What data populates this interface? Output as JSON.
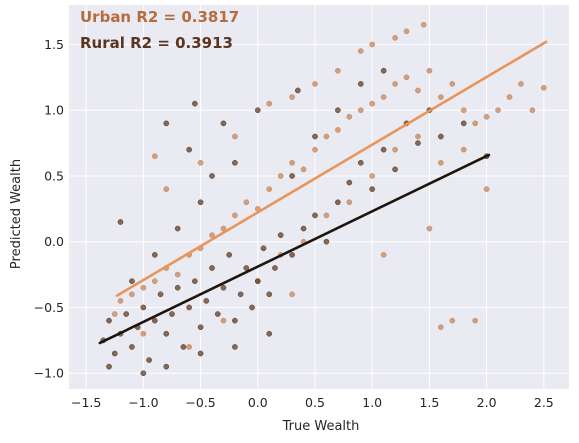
{
  "chart_data": {
    "type": "scatter",
    "xlabel": "True Wealth",
    "ylabel": "Predicted Wealth",
    "xlim": [
      -1.65,
      2.72
    ],
    "ylim": [
      -1.12,
      1.8
    ],
    "x_ticks": [
      -1.5,
      -1.0,
      -0.5,
      0.0,
      0.5,
      1.0,
      1.5,
      2.0,
      2.5
    ],
    "x_tick_labels": [
      "−1.5",
      "−1.0",
      "−0.5",
      "0.0",
      "0.5",
      "1.0",
      "1.5",
      "2.0",
      "2.5"
    ],
    "y_ticks": [
      -1.0,
      -0.5,
      0.0,
      0.5,
      1.0,
      1.5
    ],
    "y_tick_labels": [
      "−1.0",
      "−0.5",
      "0.0",
      "0.5",
      "1.0",
      "1.5"
    ],
    "grid": true,
    "background": "#eaeaf2",
    "annotations": [
      {
        "text": "Urban R2 = 0.3817",
        "color": "#b56d3f"
      },
      {
        "text": "Rural R2 = 0.3913",
        "color": "#5a3520"
      }
    ],
    "series": [
      {
        "point_color": "#c4865a",
        "line_color": "#e8955c",
        "fit_line": {
          "x": [
            -1.23,
            2.52
          ],
          "y": [
            -0.41,
            1.52
          ]
        },
        "points": [
          [
            -1.2,
            -0.45
          ],
          [
            -1.1,
            -0.4
          ],
          [
            -1.0,
            -0.35
          ],
          [
            -0.9,
            -0.3
          ],
          [
            -0.8,
            -0.2
          ],
          [
            -0.7,
            -0.25
          ],
          [
            -0.6,
            -0.1
          ],
          [
            -0.5,
            -0.05
          ],
          [
            -0.4,
            0.05
          ],
          [
            -0.3,
            0.1
          ],
          [
            -0.2,
            0.2
          ],
          [
            -0.1,
            0.3
          ],
          [
            0.0,
            0.25
          ],
          [
            0.1,
            0.4
          ],
          [
            0.2,
            0.5
          ],
          [
            0.3,
            0.6
          ],
          [
            0.4,
            0.55
          ],
          [
            0.5,
            0.7
          ],
          [
            0.6,
            0.8
          ],
          [
            0.7,
            0.85
          ],
          [
            0.8,
            0.95
          ],
          [
            0.9,
            1.0
          ],
          [
            1.0,
            1.05
          ],
          [
            1.1,
            1.1
          ],
          [
            1.2,
            1.2
          ],
          [
            1.3,
            1.25
          ],
          [
            1.4,
            1.15
          ],
          [
            1.5,
            1.3
          ],
          [
            1.6,
            1.1
          ],
          [
            1.7,
            1.2
          ],
          [
            1.8,
            1.0
          ],
          [
            1.9,
            0.9
          ],
          [
            2.0,
            0.95
          ],
          [
            2.1,
            1.0
          ],
          [
            2.2,
            1.1
          ],
          [
            2.5,
            1.17
          ],
          [
            1.3,
            1.6
          ],
          [
            1.2,
            1.55
          ],
          [
            1.0,
            1.5
          ],
          [
            0.9,
            1.45
          ],
          [
            0.7,
            1.3
          ],
          [
            0.5,
            1.2
          ],
          [
            0.3,
            1.1
          ],
          [
            0.1,
            1.05
          ],
          [
            -0.2,
            0.8
          ],
          [
            -0.5,
            0.6
          ],
          [
            -0.8,
            0.4
          ],
          [
            -0.9,
            0.65
          ],
          [
            0.0,
            -0.3
          ],
          [
            0.2,
            -0.1
          ],
          [
            0.4,
            0.0
          ],
          [
            0.6,
            0.2
          ],
          [
            0.8,
            0.3
          ],
          [
            1.0,
            0.5
          ],
          [
            1.2,
            0.7
          ],
          [
            1.4,
            0.8
          ],
          [
            1.6,
            0.6
          ],
          [
            1.8,
            0.7
          ],
          [
            2.0,
            0.4
          ],
          [
            1.5,
            0.1
          ],
          [
            1.1,
            -0.1
          ],
          [
            1.7,
            -0.6
          ],
          [
            1.6,
            -0.65
          ],
          [
            1.9,
            -0.6
          ],
          [
            -0.6,
            -0.8
          ],
          [
            -1.0,
            -0.7
          ],
          [
            -1.25,
            -0.55
          ],
          [
            -0.3,
            -0.6
          ],
          [
            0.3,
            -0.4
          ],
          [
            2.3,
            1.2
          ],
          [
            2.4,
            1.0
          ],
          [
            1.45,
            1.65
          ]
        ]
      },
      {
        "point_color": "#5e3c26",
        "line_color": "#1f140c",
        "fit_line": {
          "x": [
            -1.38,
            2.02
          ],
          "y": [
            -0.77,
            0.66
          ]
        },
        "points": [
          [
            -1.35,
            -0.75
          ],
          [
            -1.3,
            -0.6
          ],
          [
            -1.25,
            -0.85
          ],
          [
            -1.2,
            -0.7
          ],
          [
            -1.15,
            -0.55
          ],
          [
            -1.1,
            -0.8
          ],
          [
            -1.05,
            -0.65
          ],
          [
            -1.0,
            -0.5
          ],
          [
            -0.95,
            -0.9
          ],
          [
            -0.9,
            -0.6
          ],
          [
            -0.85,
            -0.4
          ],
          [
            -0.8,
            -0.7
          ],
          [
            -0.75,
            -0.55
          ],
          [
            -0.7,
            -0.35
          ],
          [
            -0.65,
            -0.8
          ],
          [
            -0.6,
            -0.5
          ],
          [
            -0.55,
            -0.3
          ],
          [
            -0.5,
            -0.65
          ],
          [
            -0.45,
            -0.45
          ],
          [
            -0.4,
            -0.2
          ],
          [
            -0.35,
            -0.55
          ],
          [
            -0.3,
            -0.35
          ],
          [
            -0.25,
            -0.1
          ],
          [
            -0.2,
            -0.6
          ],
          [
            -0.15,
            -0.4
          ],
          [
            -0.1,
            -0.2
          ],
          [
            -0.05,
            -0.5
          ],
          [
            0.0,
            -0.3
          ],
          [
            0.05,
            -0.05
          ],
          [
            0.1,
            -0.4
          ],
          [
            0.15,
            -0.2
          ],
          [
            0.2,
            0.05
          ],
          [
            0.3,
            -0.1
          ],
          [
            0.4,
            0.1
          ],
          [
            0.5,
            0.2
          ],
          [
            0.6,
            0.0
          ],
          [
            0.7,
            0.3
          ],
          [
            0.8,
            0.45
          ],
          [
            0.9,
            0.6
          ],
          [
            1.0,
            0.4
          ],
          [
            1.1,
            0.7
          ],
          [
            1.2,
            0.55
          ],
          [
            1.3,
            0.9
          ],
          [
            1.4,
            0.75
          ],
          [
            1.5,
            1.0
          ],
          [
            1.6,
            0.8
          ],
          [
            1.8,
            0.9
          ],
          [
            2.0,
            0.65
          ],
          [
            -1.3,
            -0.95
          ],
          [
            -1.0,
            -1.0
          ],
          [
            -0.8,
            -0.95
          ],
          [
            -0.5,
            -0.85
          ],
          [
            -0.2,
            -0.8
          ],
          [
            0.1,
            -0.7
          ],
          [
            -1.1,
            -0.3
          ],
          [
            -0.9,
            -0.1
          ],
          [
            -0.7,
            0.1
          ],
          [
            -0.5,
            0.3
          ],
          [
            -0.4,
            0.5
          ],
          [
            -0.6,
            0.7
          ],
          [
            -0.3,
            0.9
          ],
          [
            0.0,
            1.0
          ],
          [
            -0.2,
            0.6
          ],
          [
            0.3,
            0.5
          ],
          [
            0.5,
            0.8
          ],
          [
            0.7,
            1.0
          ],
          [
            0.9,
            1.2
          ],
          [
            1.1,
            1.3
          ],
          [
            -1.2,
            0.15
          ],
          [
            -0.8,
            0.9
          ],
          [
            -0.55,
            1.05
          ],
          [
            0.35,
            1.15
          ]
        ]
      }
    ]
  }
}
